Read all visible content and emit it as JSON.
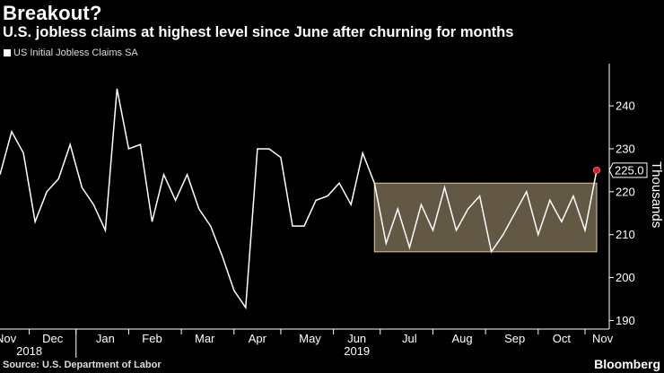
{
  "chart_data": {
    "type": "line",
    "title": "Breakout?",
    "subtitle": "U.S. jobless claims at highest level since June after churning for months",
    "series": [
      {
        "name": "US Initial Jobless Claims SA",
        "values": [
          224,
          234,
          229,
          213,
          220,
          223,
          231,
          221,
          217,
          211,
          244,
          230,
          231,
          213,
          224,
          218,
          224,
          216,
          212,
          205,
          197,
          193,
          230,
          230,
          228,
          212,
          212,
          218,
          219,
          222,
          217,
          229,
          222,
          208,
          216,
          207,
          217,
          211,
          221,
          211,
          216,
          219,
          206,
          210,
          215,
          220,
          210,
          218,
          213,
          219,
          211,
          225
        ]
      }
    ],
    "last_value_label": "225.0",
    "ylabel": "Thousands",
    "ylim": [
      188,
      249
    ],
    "yticks": [
      190,
      200,
      210,
      220,
      230,
      240
    ],
    "range_band": {
      "low": 206,
      "high": 222,
      "start_index": 32,
      "end_index": 51,
      "color": "#b3a07c"
    },
    "x_tick_labels": [
      {
        "label": "Nov",
        "index": 0.5
      },
      {
        "label": "Dec",
        "index": 4.5
      },
      {
        "label": "Jan",
        "index": 9
      },
      {
        "label": "Feb",
        "index": 13
      },
      {
        "label": "Mar",
        "index": 17.5
      },
      {
        "label": "Apr",
        "index": 22
      },
      {
        "label": "May",
        "index": 26.5
      },
      {
        "label": "Jun",
        "index": 30.5
      },
      {
        "label": "Jul",
        "index": 35
      },
      {
        "label": "Aug",
        "index": 39.5
      },
      {
        "label": "Sep",
        "index": 44
      },
      {
        "label": "Oct",
        "index": 48
      },
      {
        "label": "Nov",
        "index": 51.5
      }
    ],
    "x_minor_ticks": [
      2.5,
      6.5,
      11,
      15.5,
      20,
      24,
      28.5,
      32.5,
      37,
      41.5,
      46,
      50
    ],
    "year_labels": [
      {
        "label": "2018",
        "index": 2.5
      },
      {
        "label": "2019",
        "index": 30.5
      }
    ],
    "year_divider_index": 6.5,
    "colors": {
      "line": "#ffffff",
      "marker": "#d61f1f",
      "band": "#b3a07c"
    }
  },
  "legend": {
    "label": "US Initial Jobless Claims SA"
  },
  "source": "Source: U.S. Department of Labor",
  "brand": "Bloomberg"
}
